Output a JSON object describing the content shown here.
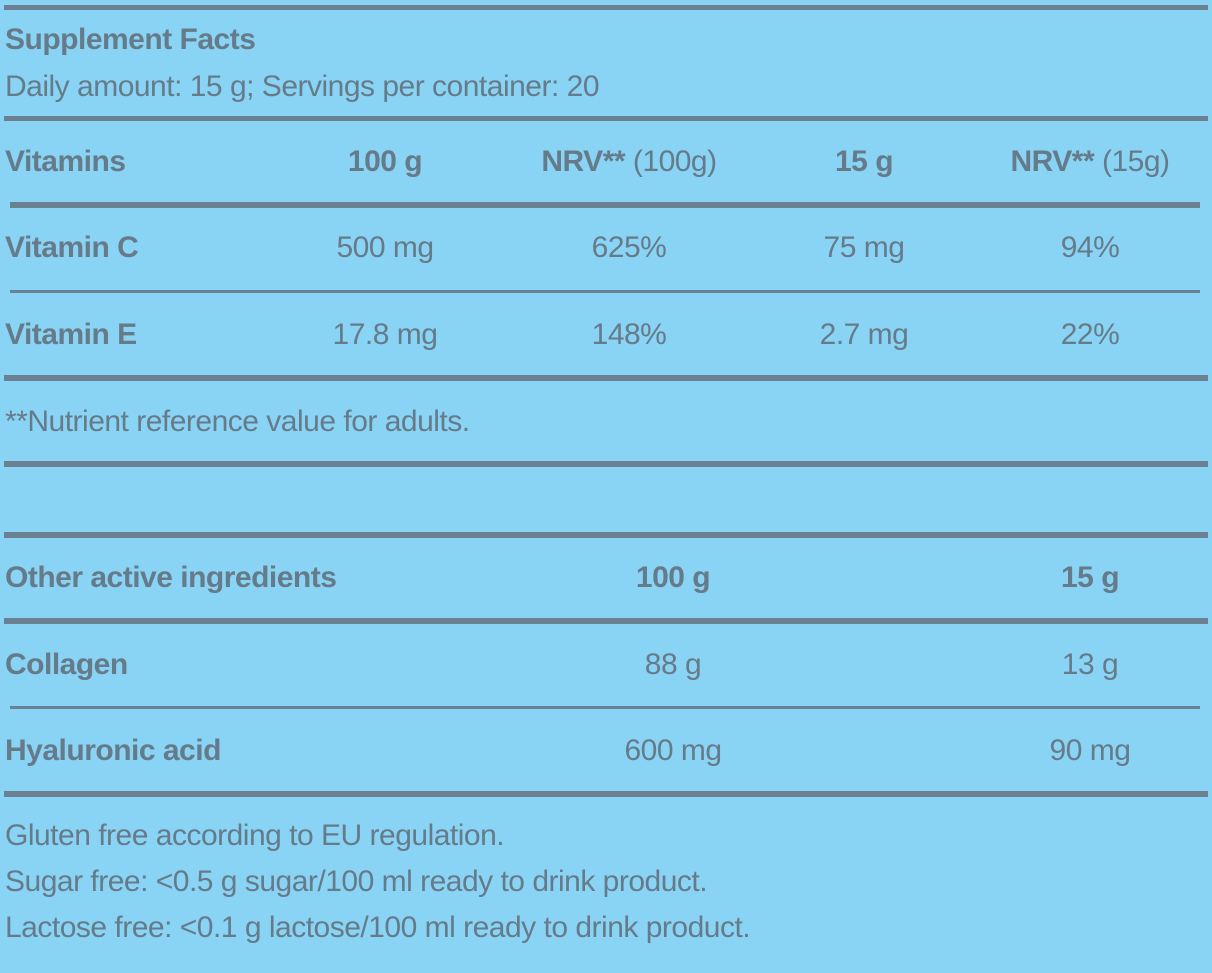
{
  "header": {
    "title": "Supplement Facts",
    "subtitle": "Daily amount: 15 g; Servings per container: 20"
  },
  "vitamins": {
    "columns": [
      [
        "Vitamins"
      ],
      [
        "100 g"
      ],
      [
        "NRV**",
        "(100g)"
      ],
      [
        "15 g"
      ],
      [
        "NRV**",
        "(15g)"
      ]
    ],
    "rows": [
      [
        "Vitamin C",
        "500 mg",
        "625%",
        "75 mg",
        "94%"
      ],
      [
        "Vitamin E",
        "17.8 mg",
        "148%",
        "2.7 mg",
        "22%"
      ]
    ],
    "footnote": "**Nutrient reference value for adults."
  },
  "other": {
    "columns": [
      "Other active ingredients",
      "100 g",
      "15 g"
    ],
    "rows": [
      [
        "Collagen",
        "88 g",
        "13 g"
      ],
      [
        "Hyaluronic acid",
        "600 mg",
        "90 mg"
      ]
    ]
  },
  "notes": [
    "Gluten free according to EU regulation.",
    "Sugar free: <0.5 g sugar/100 ml ready to drink product.",
    "Lactose free: <0.1 g lactose/100 ml ready to drink product."
  ]
}
